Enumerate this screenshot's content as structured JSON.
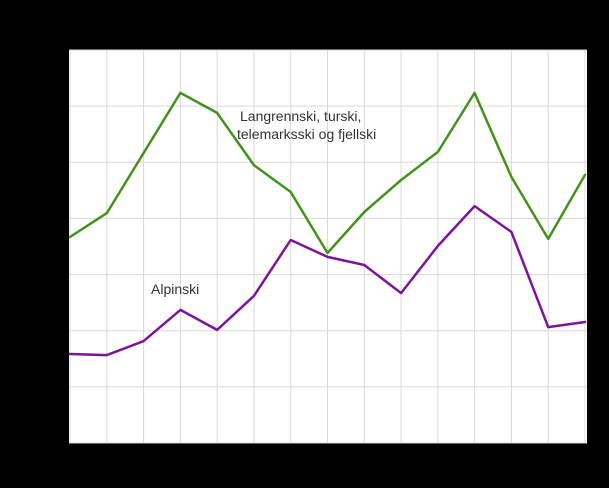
{
  "canvas": {
    "background": "#000000",
    "plot_background": "#ffffff",
    "grid_color": "#d9d9d9",
    "text_color": "#333333"
  },
  "chart_data": {
    "type": "line",
    "title": "",
    "xlabel": "",
    "ylabel": "",
    "grid": true,
    "legend_position": "inline-annotations",
    "x_count": 15,
    "x_tick_labels_visible": false,
    "y_tick_labels_visible": false,
    "y_assumed_range": [
      0,
      140
    ],
    "y_gridline_step": 20,
    "series": [
      {
        "name": "Langrennski, turski, telemarksski og fjellski",
        "label_lines": [
          "Langrennski,  turski,",
          "telemarksski  og fjellski"
        ],
        "color": "#45911d",
        "values": [
          73.4,
          81.9,
          103.3,
          124.7,
          117.6,
          99.0,
          89.4,
          67.7,
          82.3,
          93.7,
          103.7,
          124.7,
          94.8,
          72.7,
          95.5
        ]
      },
      {
        "name": "Alpinski",
        "label": "Alpinski",
        "color": "#7c149c",
        "values": [
          31.7,
          31.3,
          36.3,
          47.4,
          40.3,
          52.4,
          72.3,
          66.3,
          63.4,
          53.4,
          70.2,
          84.4,
          75.2,
          41.3,
          43.1
        ]
      }
    ]
  }
}
